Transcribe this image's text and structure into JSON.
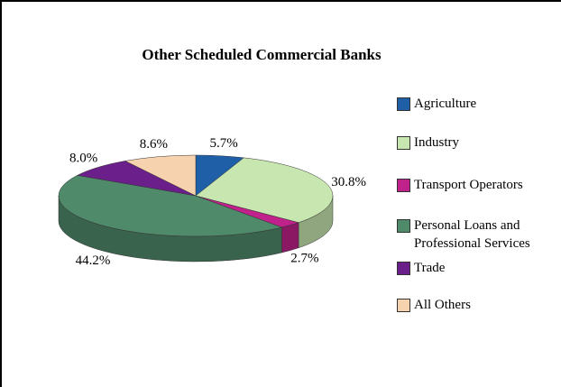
{
  "chart_data": {
    "type": "pie",
    "title": "Other Scheduled Commercial Banks",
    "categories": [
      "Agriculture",
      "Industry",
      "Transport Operators",
      "Personal Loans and Professional Services",
      "Trade",
      "All Others"
    ],
    "values": [
      5.7,
      30.8,
      2.7,
      44.2,
      8.0,
      8.6
    ],
    "value_labels": [
      "5.7%",
      "30.8%",
      "2.7%",
      "44.2%",
      "8.0%",
      "8.6%"
    ],
    "colors": [
      "#1f5fa8",
      "#c8e6b0",
      "#c0218a",
      "#4f8a6a",
      "#6a1f8a",
      "#f7d2ae"
    ],
    "legend": "right"
  }
}
